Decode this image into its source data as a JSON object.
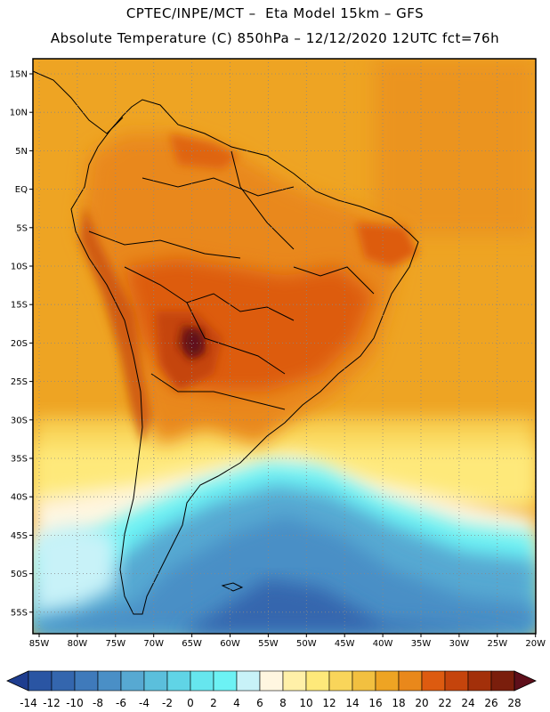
{
  "header": {
    "line1": "CPTEC/INPE/MCT –  Eta Model 15km – GFS",
    "line2": "Absolute Temperature (C) 850hPa – 12/12/2020 12UTC fct=76h"
  },
  "map": {
    "lat_labels": [
      "15N",
      "10N",
      "5N",
      "EQ",
      "5S",
      "10S",
      "15S",
      "20S",
      "25S",
      "30S",
      "35S",
      "40S",
      "45S",
      "50S",
      "55S"
    ],
    "lon_labels": [
      "85W",
      "80W",
      "75W",
      "70W",
      "65W",
      "60W",
      "55W",
      "50W",
      "45W",
      "40W",
      "35W",
      "30W",
      "25W",
      "20W"
    ],
    "grid": "dotted"
  },
  "colorbar": {
    "ticks": [
      "-14",
      "-12",
      "-10",
      "-8",
      "-6",
      "-4",
      "-2",
      "0",
      "2",
      "4",
      "6",
      "8",
      "10",
      "12",
      "14",
      "16",
      "18",
      "20",
      "22",
      "24",
      "26",
      "28"
    ],
    "colors": [
      "#1e3d8f",
      "#2a55a3",
      "#3466ae",
      "#3f7abb",
      "#4a8fc6",
      "#57a9d2",
      "#5bbfdc",
      "#60d4e6",
      "#66e6ee",
      "#6cf2f4",
      "#c8f2f8",
      "#fff6e0",
      "#fff0a8",
      "#fee97a",
      "#f9d55a",
      "#f2c040",
      "#eea423",
      "#e9881b",
      "#dd5b10",
      "#c5440c",
      "#a3300a",
      "#7a1e0c",
      "#5e0f1a"
    ]
  }
}
